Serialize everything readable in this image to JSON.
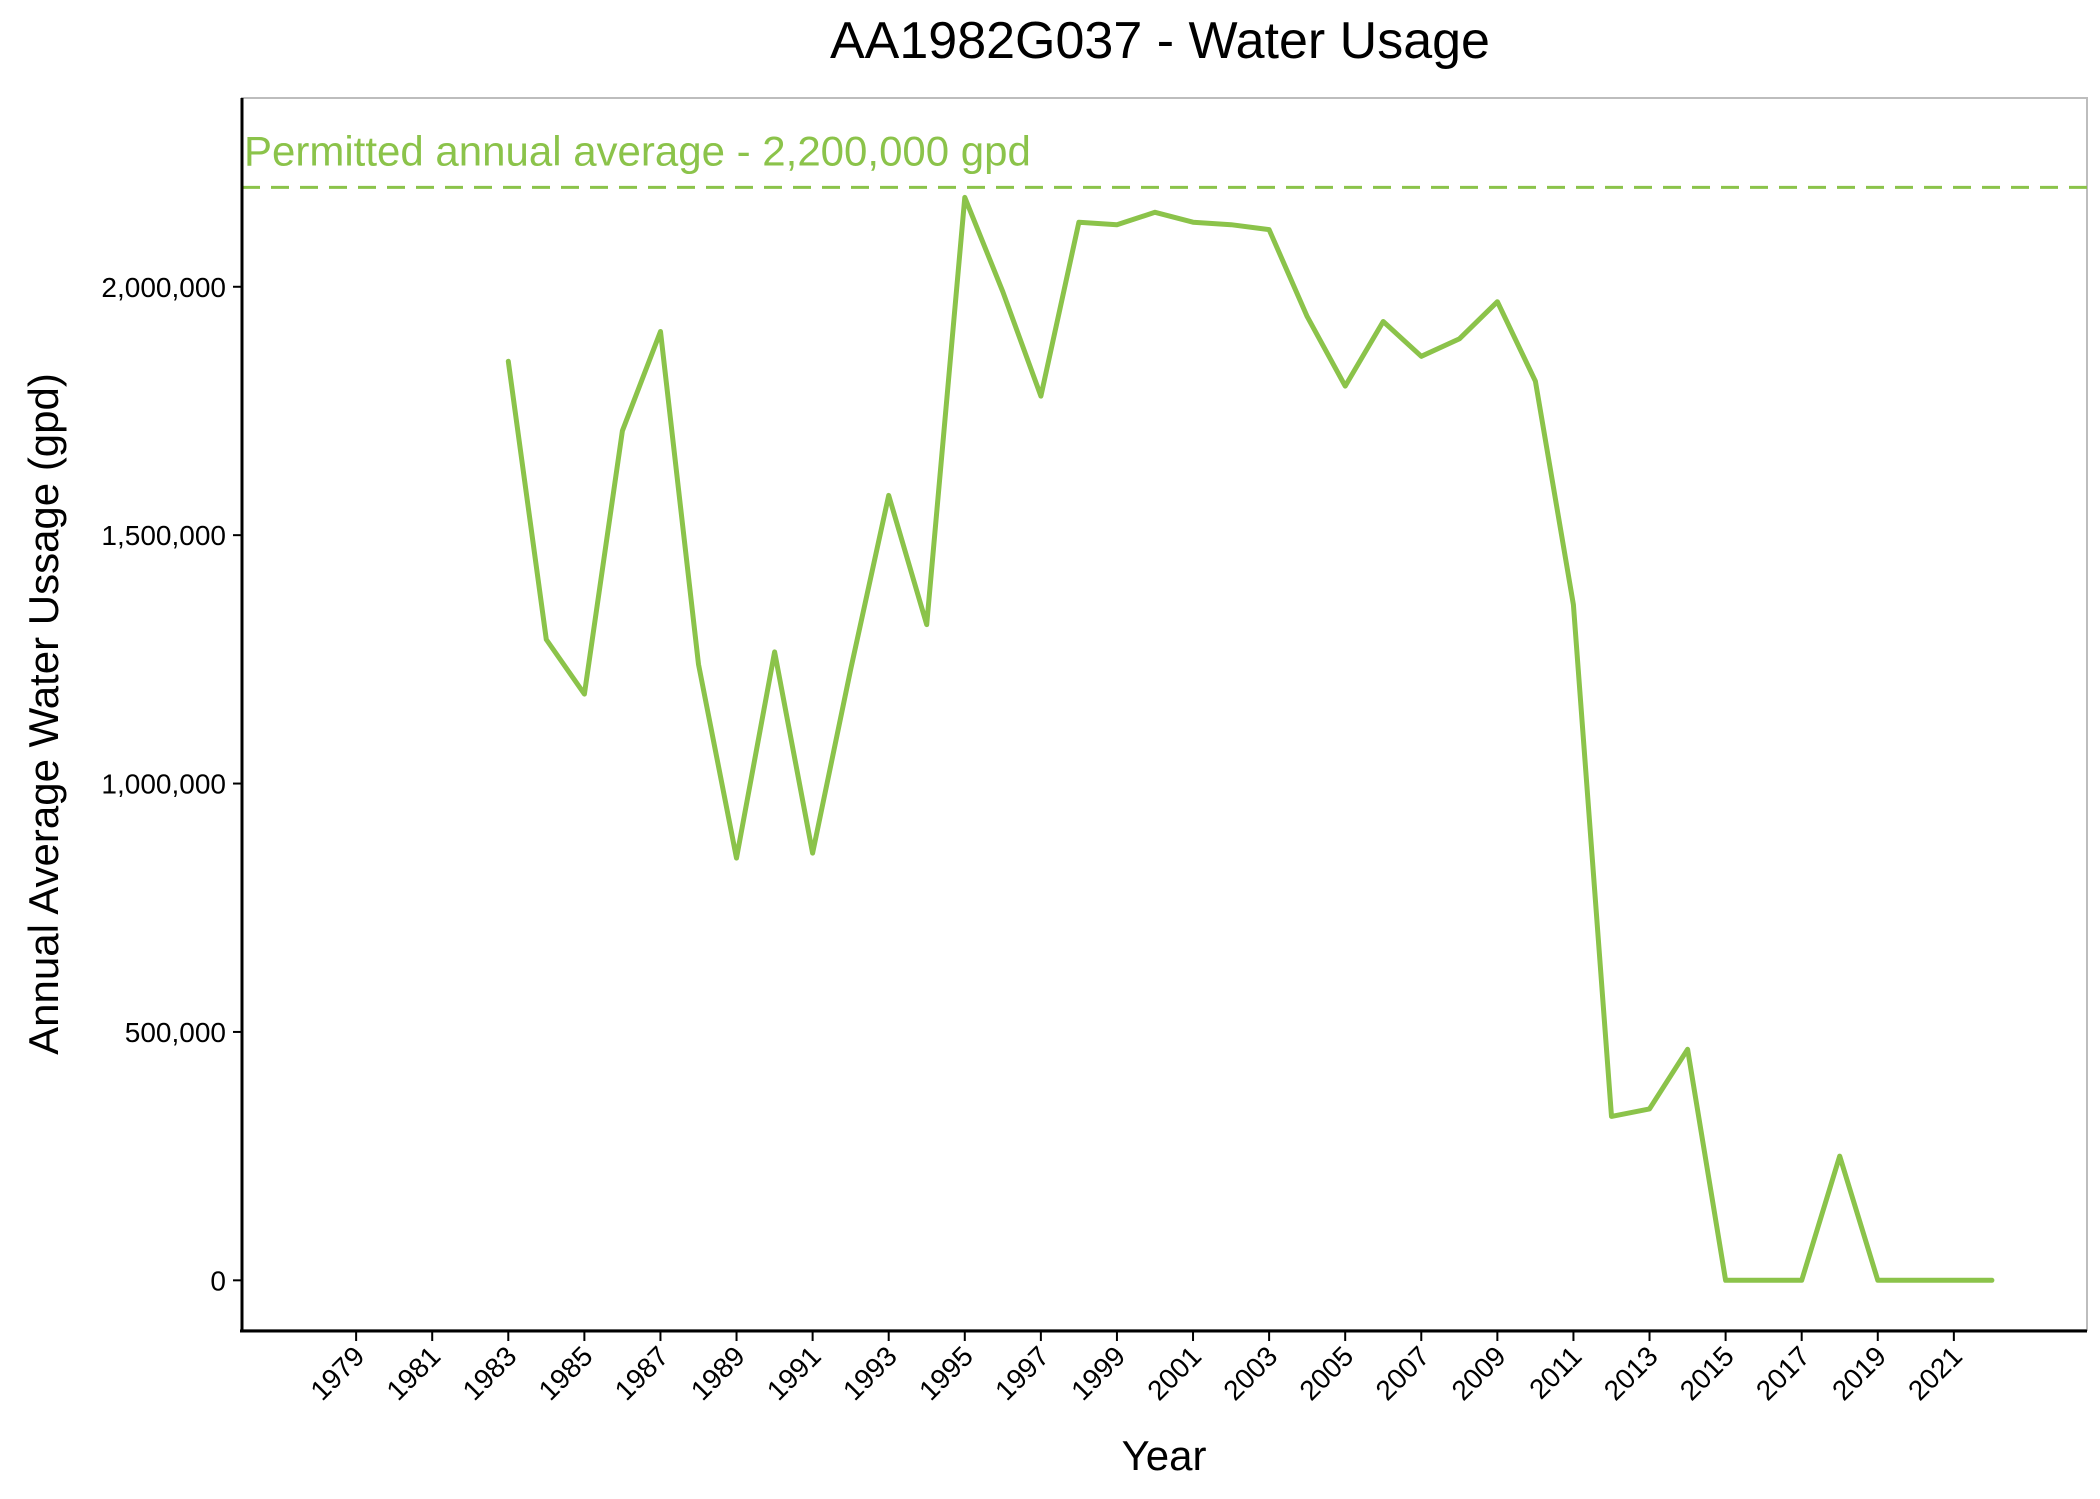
{
  "chart_data": {
    "type": "line",
    "title": "AA1982G037 - Water Usage",
    "xlabel": "Year",
    "ylabel": "Annual Average Water Ussage (gpd)",
    "xlim": [
      1976,
      2024.5
    ],
    "ylim": [
      -100000,
      2380000
    ],
    "x_ticks": [
      1979,
      1981,
      1983,
      1985,
      1987,
      1989,
      1991,
      1993,
      1995,
      1997,
      1999,
      2001,
      2003,
      2005,
      2007,
      2009,
      2011,
      2013,
      2015,
      2017,
      2019,
      2021
    ],
    "y_ticks": [
      0,
      500000,
      1000000,
      1500000,
      2000000
    ],
    "y_tick_labels": [
      "0",
      "500,000",
      "1,000,000",
      "1,500,000",
      "2,000,000"
    ],
    "grid": false,
    "line_color": "#8bc34a",
    "reference_line": {
      "value": 2200000,
      "label": "Permitted annual average - 2,200,000 gpd",
      "style": "dashed",
      "color": "#8bc34a"
    },
    "series": [
      {
        "x": [
          1983,
          1984,
          1985,
          1986,
          1987,
          1988,
          1989,
          1990,
          1991,
          1992,
          1993,
          1994,
          1995,
          1996,
          1997,
          1998,
          1999,
          2000,
          2001,
          2002,
          2003,
          2004,
          2005,
          2006,
          2007,
          2008,
          2009,
          2010,
          2011,
          2012,
          2013,
          2014,
          2015,
          2016,
          2017,
          2018,
          2019,
          2020,
          2021,
          2022
        ],
        "values": [
          1850000,
          1290000,
          1180000,
          1710000,
          1910000,
          1240000,
          850000,
          1265000,
          860000,
          1230000,
          1580000,
          1320000,
          2180000,
          1990000,
          1780000,
          2130000,
          2125000,
          2150000,
          2130000,
          2125000,
          2115000,
          1940000,
          1800000,
          1930000,
          1860000,
          1895000,
          1970000,
          1810000,
          1360000,
          330000,
          345000,
          465000,
          0,
          0,
          0,
          250000,
          0,
          0,
          0,
          0
        ]
      }
    ]
  }
}
